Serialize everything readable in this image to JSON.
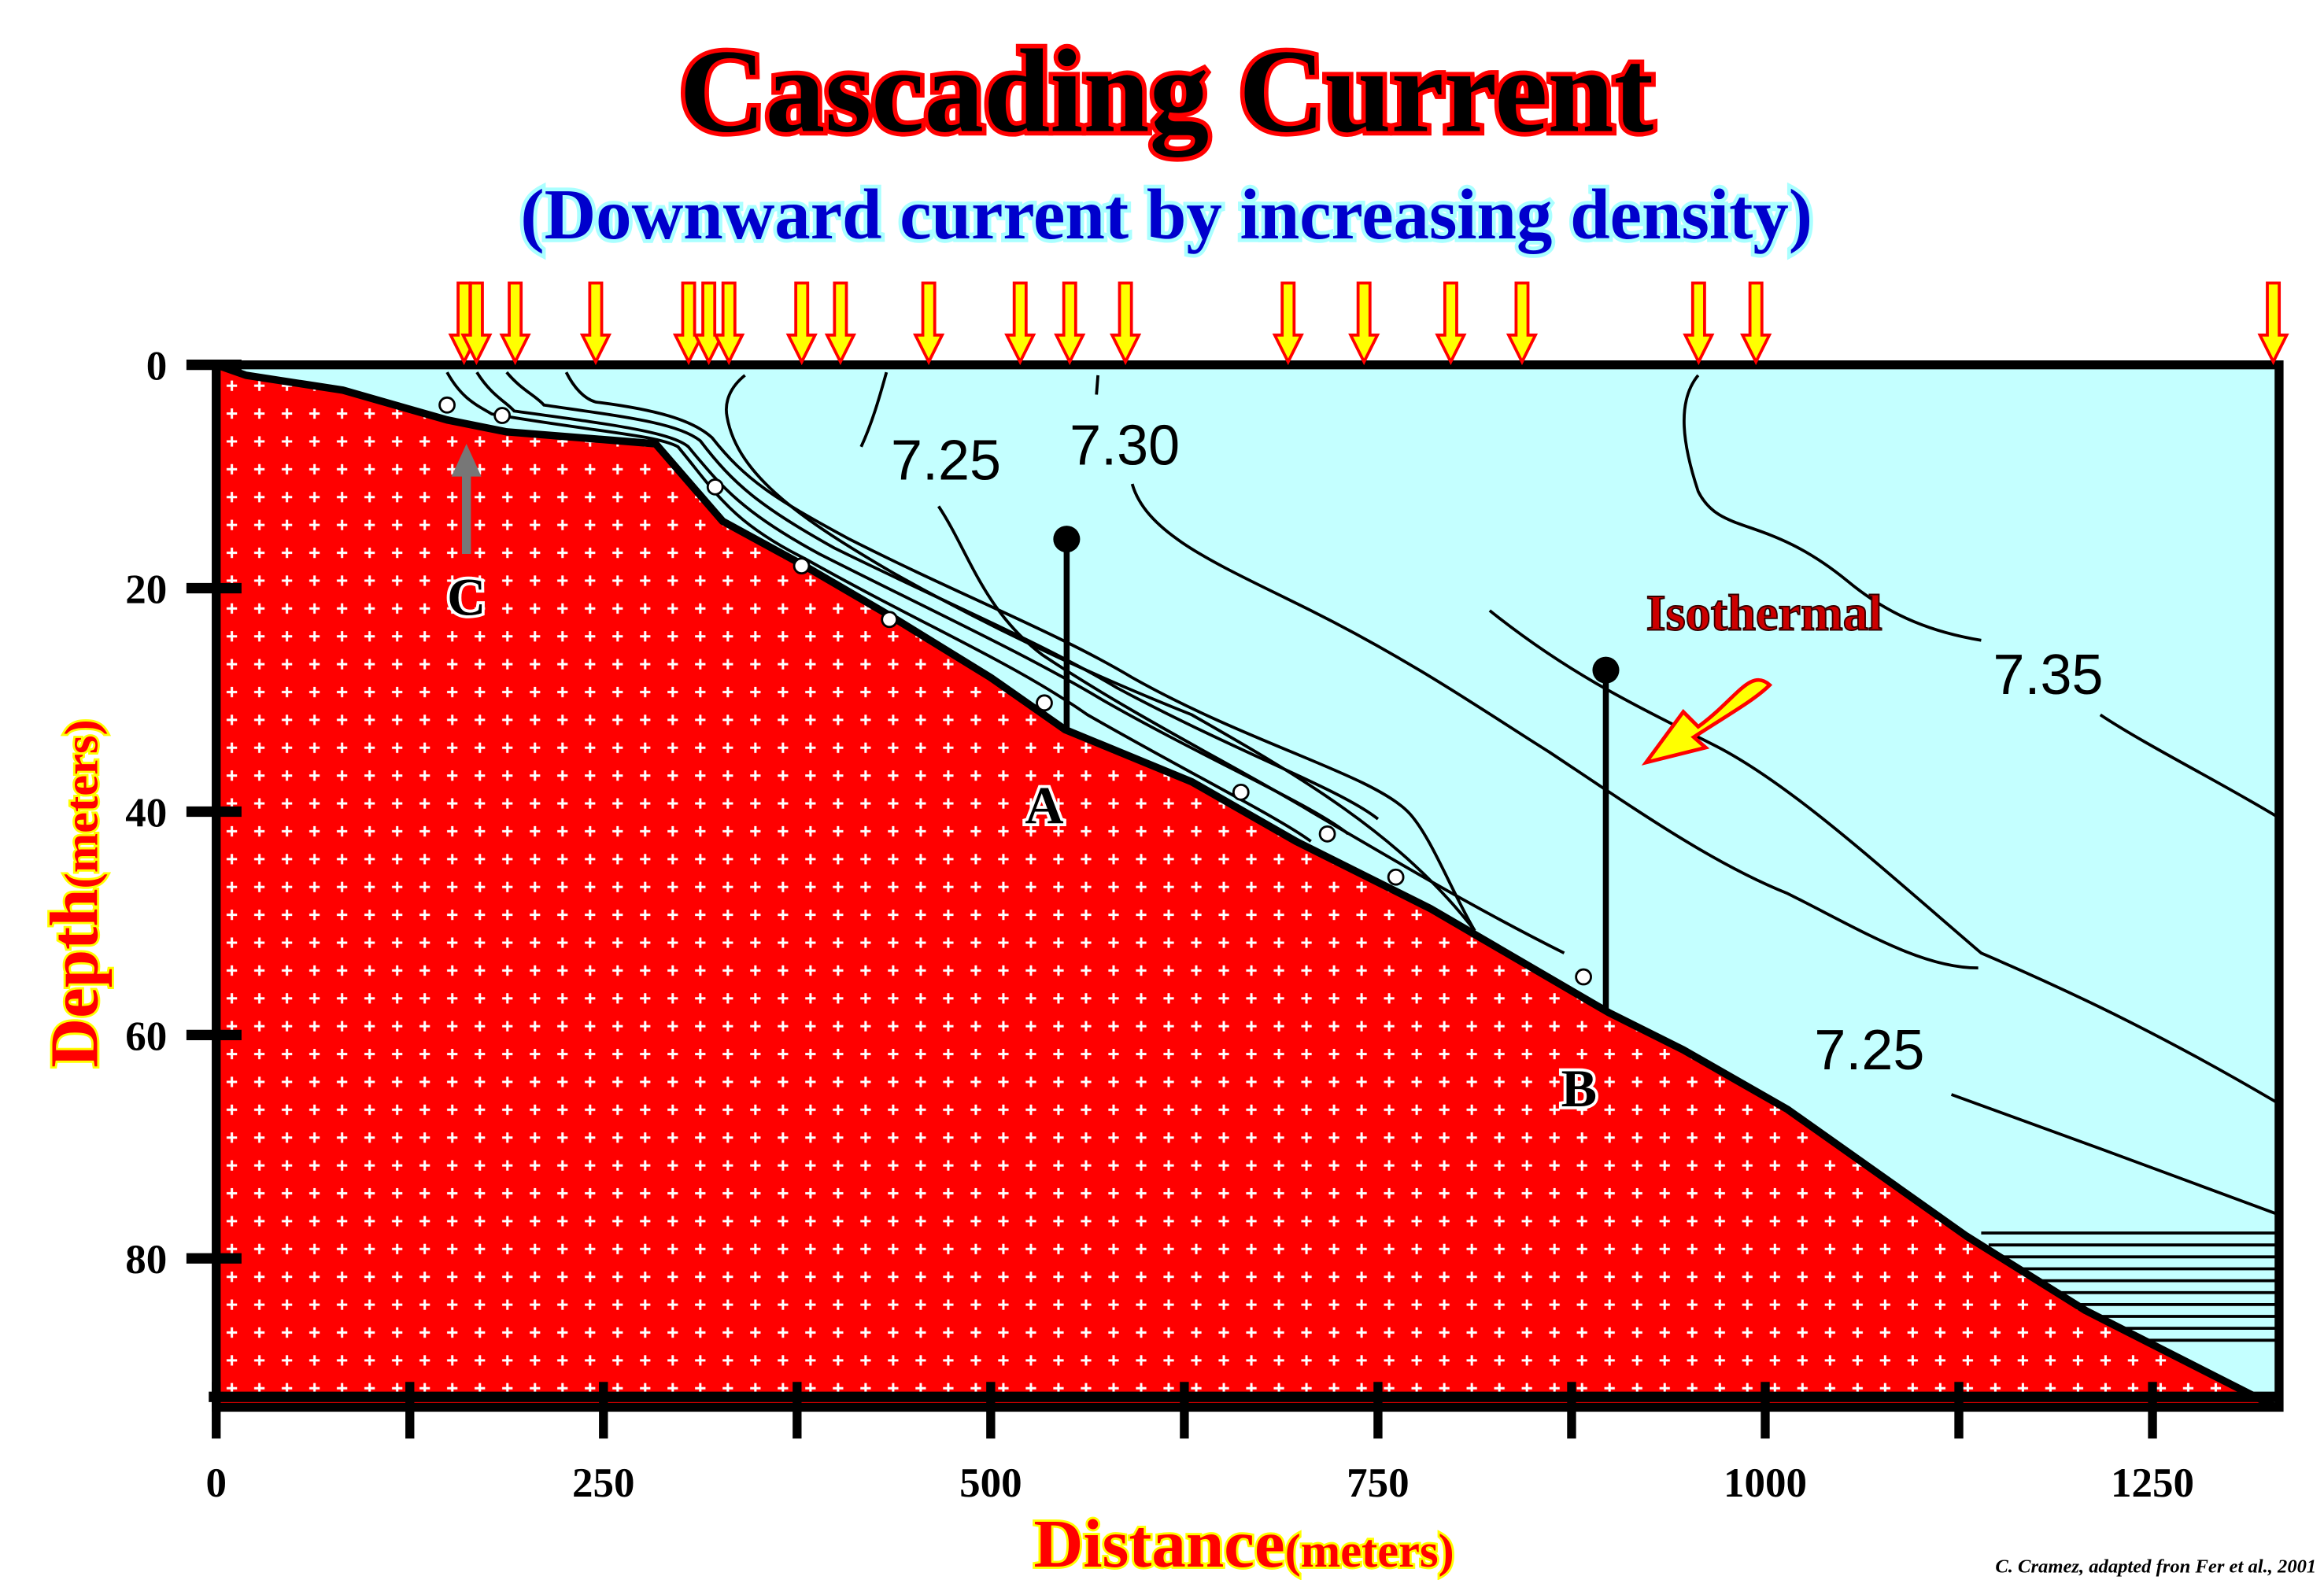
{
  "title": "Cascading Current",
  "subtitle": "(Downward current by increasing density)",
  "credit": "C. Cramez, adapted fron Fer et al., 2001",
  "colors": {
    "seafloor": "#ff0000",
    "water": "#c4ffff",
    "arrow_fill": "#ffff00",
    "arrow_stroke": "#ff0000",
    "title_outline": "#ff0000",
    "subtitle": "#0000cc"
  },
  "axes": {
    "x_label": "Distance",
    "x_unit": "(meters)",
    "y_label": "Depth",
    "y_unit": "(meters)",
    "x_ticks": [
      "0",
      "250",
      "500",
      "750",
      "1000",
      "1250"
    ],
    "y_ticks": [
      "0",
      "20",
      "40",
      "60",
      "80"
    ]
  },
  "chart_data": {
    "type": "diagram",
    "x_range": [
      0,
      1330
    ],
    "y_range": [
      0,
      93
    ],
    "x_tick_values": [
      0,
      250,
      500,
      750,
      1000,
      1250
    ],
    "x_minor_tick_values": [
      125,
      375,
      625,
      875,
      1125
    ],
    "y_tick_values": [
      0,
      20,
      40,
      60,
      80
    ],
    "surface_arrow_distances": [
      160,
      168,
      193,
      245,
      305,
      318,
      331,
      378,
      403,
      460,
      519,
      551,
      587,
      692,
      741,
      797,
      843,
      957,
      994,
      1328
    ],
    "isotherm_labels": [
      "7.25",
      "7.30",
      "7.35",
      "7.25"
    ]
  },
  "annotations": {
    "isothermal": "Isothermal",
    "point_a": "A",
    "point_b": "B",
    "point_c": "C"
  }
}
